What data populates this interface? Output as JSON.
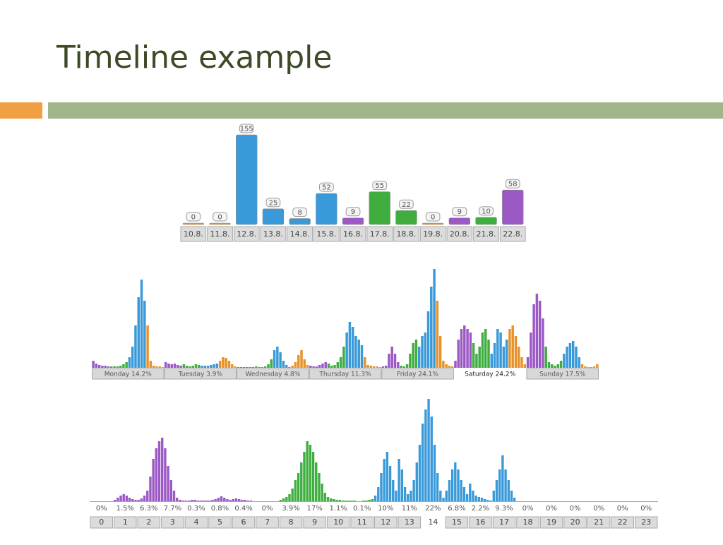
{
  "slide": {
    "title": "Timeline example"
  },
  "chart_data": [
    {
      "type": "bar",
      "categories": [
        "10.8.",
        "11.8.",
        "12.8.",
        "13.8.",
        "14.8.",
        "15.8.",
        "16.8.",
        "17.8.",
        "18.8.",
        "19.8.",
        "20.8.",
        "21.8.",
        "22.8."
      ],
      "values": [
        0,
        0,
        155,
        25,
        8,
        52,
        9,
        55,
        22,
        0,
        9,
        10,
        58
      ],
      "colors": [
        "#e8922a",
        "#e8922a",
        "#3a9ad9",
        "#3a9ad9",
        "#3a9ad9",
        "#3a9ad9",
        "#9b59c6",
        "#3fae3f",
        "#3fae3f",
        "#e8922a",
        "#9b59c6",
        "#3fae3f",
        "#9b59c6"
      ]
    },
    {
      "type": "grouped-timeline",
      "categories": [
        "Monday 14.2%",
        "Tuesday 3.9%",
        "Wednesday 4.8%",
        "Thursday 11.3%",
        "Friday 24.1%",
        "Saturday 24.2%",
        "Sunday 17.5%"
      ],
      "highlight": 5,
      "palette": [
        "#9b59c6",
        "#3fae3f",
        "#3a9ad9",
        "#e8922a"
      ],
      "bars": [
        [
          10,
          6,
          4,
          3,
          3,
          2,
          2,
          2,
          2,
          3,
          5,
          8,
          15,
          30,
          60,
          100,
          125,
          95,
          60,
          10,
          3,
          2,
          2,
          1
        ],
        [
          8,
          6,
          5,
          6,
          4,
          3,
          5,
          3,
          2,
          3,
          5,
          4,
          3,
          3,
          3,
          4,
          5,
          6,
          10,
          15,
          14,
          10,
          5,
          2
        ],
        [
          1,
          1,
          1,
          1,
          1,
          1,
          2,
          1,
          1,
          2,
          5,
          12,
          25,
          30,
          22,
          10,
          4,
          1,
          3,
          8,
          18,
          25,
          12,
          4
        ],
        [
          3,
          2,
          2,
          4,
          6,
          8,
          6,
          3,
          4,
          8,
          15,
          30,
          50,
          65,
          58,
          45,
          40,
          32,
          15,
          4,
          3,
          2,
          2,
          1
        ],
        [
          2,
          3,
          20,
          30,
          20,
          8,
          3,
          2,
          5,
          20,
          35,
          40,
          30,
          45,
          50,
          80,
          115,
          140,
          95,
          45,
          10,
          5,
          3,
          2
        ],
        [
          10,
          40,
          55,
          60,
          55,
          50,
          35,
          20,
          30,
          50,
          55,
          40,
          20,
          35,
          55,
          50,
          30,
          40,
          55,
          60,
          45,
          30,
          15,
          5
        ],
        [
          15,
          50,
          90,
          105,
          95,
          70,
          30,
          8,
          5,
          3,
          5,
          10,
          20,
          30,
          35,
          38,
          30,
          15,
          5,
          2,
          1,
          1,
          2,
          5
        ]
      ]
    },
    {
      "type": "grouped-timeline",
      "categories": [
        "0",
        "1",
        "2",
        "3",
        "4",
        "5",
        "6",
        "7",
        "8",
        "9",
        "10",
        "11",
        "12",
        "13",
        "14",
        "15",
        "16",
        "17",
        "18",
        "19",
        "20",
        "21",
        "22",
        "23"
      ],
      "highlight": 14,
      "values": [
        0,
        1.5,
        6.3,
        7.7,
        0.3,
        0.8,
        0.4,
        0,
        3.9,
        17,
        1.1,
        0.1,
        10,
        11,
        22,
        6.8,
        2.2,
        9.3,
        0,
        0,
        0,
        0,
        0,
        0
      ],
      "value_labels": [
        "0%",
        "1.5%",
        "6.3%",
        "7.7%",
        "0.3%",
        "0.8%",
        "0.4%",
        "0%",
        "3.9%",
        "17%",
        "1.1%",
        "0.1%",
        "10%",
        "11%",
        "22%",
        "6.8%",
        "2.2%",
        "9.3%",
        "0%",
        "0%",
        "0%",
        "0%",
        "0%",
        "0%"
      ],
      "palette": [
        "#9b59c6",
        "#3fae3f",
        "#3a9ad9",
        "#e8922a"
      ],
      "hour_colors": [
        0,
        0,
        0,
        0,
        0,
        0,
        0,
        1,
        1,
        1,
        1,
        1,
        2,
        2,
        2,
        2,
        2,
        2,
        3,
        3,
        3,
        3,
        3,
        3
      ],
      "bars": [
        [
          0,
          0,
          0,
          0,
          0,
          0,
          0,
          0
        ],
        [
          2,
          5,
          8,
          10,
          8,
          5,
          3,
          2
        ],
        [
          2,
          4,
          8,
          15,
          35,
          60,
          75,
          85
        ],
        [
          90,
          75,
          50,
          30,
          15,
          5,
          2,
          1
        ],
        [
          1,
          1,
          2,
          2,
          1,
          1,
          1,
          1
        ],
        [
          1,
          2,
          3,
          5,
          7,
          5,
          3,
          2
        ],
        [
          3,
          4,
          3,
          2,
          2,
          1,
          1,
          0
        ],
        [
          0,
          0,
          0,
          0,
          0,
          0,
          0,
          0
        ],
        [
          2,
          4,
          6,
          10,
          18,
          30,
          40,
          55
        ],
        [
          70,
          85,
          80,
          70,
          55,
          40,
          25,
          12
        ],
        [
          6,
          4,
          3,
          2,
          2,
          1,
          1,
          1
        ],
        [
          1,
          1,
          0,
          0,
          1,
          1,
          2,
          3
        ],
        [
          8,
          20,
          40,
          60,
          70,
          50,
          30,
          15
        ],
        [
          60,
          45,
          20,
          10,
          15,
          30,
          55,
          80
        ],
        [
          110,
          130,
          145,
          120,
          80,
          40,
          15,
          5
        ],
        [
          15,
          30,
          45,
          55,
          45,
          30,
          20,
          10
        ],
        [
          25,
          15,
          8,
          6,
          5,
          3,
          2,
          1
        ],
        [
          15,
          30,
          45,
          65,
          45,
          30,
          15,
          5
        ],
        [
          0,
          0,
          0,
          0,
          0,
          0,
          0,
          0
        ],
        [
          0,
          0,
          0,
          0,
          0,
          0,
          0,
          0
        ],
        [
          0,
          0,
          0,
          0,
          0,
          0,
          0,
          0
        ],
        [
          0,
          0,
          0,
          0,
          0,
          0,
          0,
          0
        ],
        [
          0,
          0,
          0,
          0,
          0,
          0,
          0,
          0
        ],
        [
          0,
          0,
          0,
          0,
          0,
          0,
          0,
          0
        ]
      ]
    }
  ]
}
